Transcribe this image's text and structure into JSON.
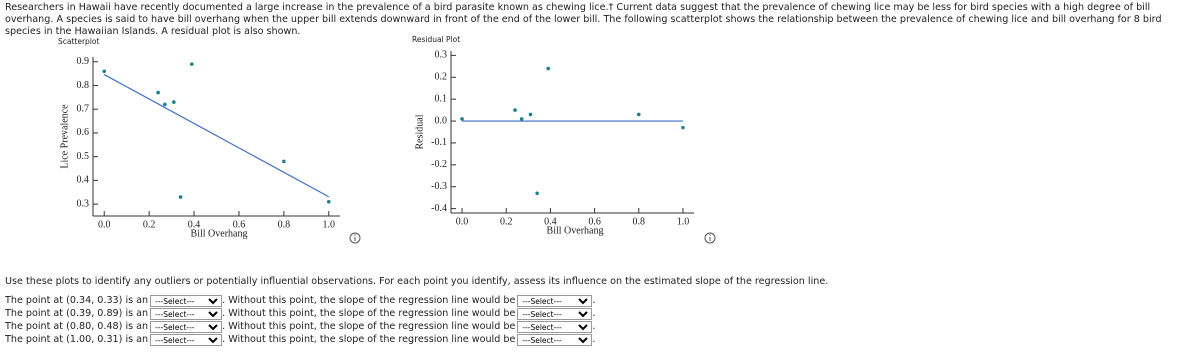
{
  "intro": "Researchers in Hawaii have recently documented a large increase in the prevalence of a bird parasite known as chewing lice.† Current data suggest that the prevalence of chewing lice may be less for bird species with a high degree of bill overhang. A species is said to have bill overhang when the upper bill extends downward in front of the end of the lower bill. The following scatterplot shows the relationship between the prevalence of chewing lice and bill overhang for 8 bird species in the Hawaiian Islands. A residual plot is also shown.",
  "chart_data": [
    {
      "type": "scatter",
      "title": "Scatterplot",
      "x_label": "Bill Overhang",
      "y_label": "Lice Prevalence",
      "color": "#1b7f8c",
      "x": [
        0,
        0.24,
        0.27,
        0.31,
        0.39,
        0.34,
        0.8,
        1.0
      ],
      "y": [
        0.86,
        0.77,
        0.72,
        0.73,
        0.89,
        0.33,
        0.48,
        0.31
      ],
      "xlim": [
        -0.05,
        1.05
      ],
      "ylim": [
        0.25,
        0.92
      ],
      "xticks": [
        {
          "value": 0,
          "label": "0.0"
        },
        0.2,
        0.4,
        0.6,
        0.8,
        {
          "value": 1,
          "label": "1.0"
        }
      ],
      "yticks": [
        0.3,
        0.4,
        0.5,
        0.6,
        0.7,
        0.8,
        0.9
      ],
      "line": {
        "x": [
          0,
          1
        ],
        "y": [
          0.846,
          0.331
        ],
        "color": "#3b6fc4"
      }
    },
    {
      "type": "scatter",
      "title": "Residual Plot",
      "x_label": "Bill Overhang",
      "y_label": "Residual",
      "color": "#1b7f8c",
      "x": [
        0,
        0.24,
        0.27,
        0.31,
        0.39,
        0.34,
        0.8,
        1.0
      ],
      "y": [
        0.01,
        0.05,
        0.01,
        0.03,
        0.24,
        -0.33,
        0.03,
        -0.03
      ],
      "xlim": [
        -0.05,
        1.05
      ],
      "ylim": [
        -0.42,
        0.32
      ],
      "xticks": [
        {
          "value": 0,
          "label": "0.0"
        },
        0.2,
        0.4,
        0.6,
        0.8,
        {
          "value": 1,
          "label": "1.0"
        }
      ],
      "yticks": [
        0.3,
        0.2,
        0.1,
        {
          "value": 0,
          "label": "0.0"
        },
        -0.1,
        -0.2,
        -0.3,
        -0.4
      ],
      "line": {
        "x": [
          0,
          1
        ],
        "y": [
          0,
          0
        ],
        "color": "#3b6fc4"
      }
    }
  ],
  "instruction": "Use these plots to identify any outliers or potentially influential observations. For each point you identify, assess its influence on the estimated slope of the regression line.",
  "questions": [
    {
      "prefix": "The point at (0.34, 0.33) is an",
      "select1": "---Select---",
      "middle": ". Without this point, the slope of the regression line would be",
      "select2": "---Select---",
      "suffix": "."
    },
    {
      "prefix": "The point at (0.39, 0.89) is an",
      "select1": "---Select---",
      "middle": ". Without this point, the slope of the regression line would be",
      "select2": "---Select---",
      "suffix": "."
    },
    {
      "prefix": "The point at (0.80, 0.48) is an",
      "select1": "---Select---",
      "middle": ". Without this point, the slope of the regression line would be",
      "select2": "---Select---",
      "suffix": "."
    },
    {
      "prefix": "The point at (1.00, 0.31) is an",
      "select1": "---Select---",
      "middle": ". Without this point, the slope of the regression line would be",
      "select2": "---Select---",
      "suffix": "."
    }
  ]
}
